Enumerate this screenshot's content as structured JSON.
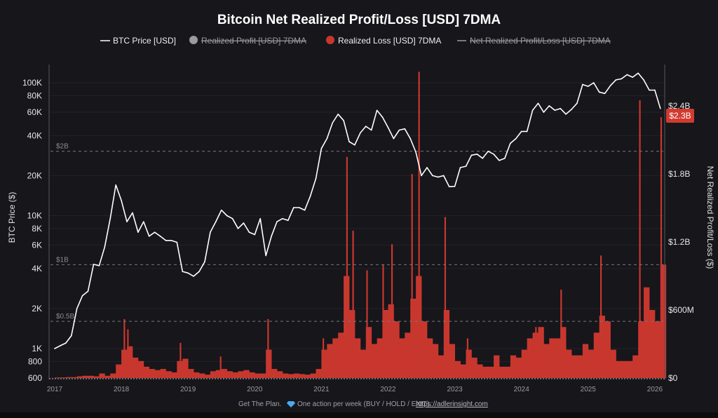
{
  "colors": {
    "background": "#16161b",
    "price_line": "#ffffff",
    "loss_fill": "#c8372e",
    "profit_legend": "#9a9aa2",
    "label_bg": "#d23a30"
  },
  "chart_data": {
    "type": "area",
    "title": "Bitcoin Net Realized Profit/Loss [USD] 7DMA",
    "legend": {
      "placement": "top",
      "items": [
        {
          "label": "BTC Price [USD]",
          "marker": "line",
          "active": true
        },
        {
          "label": "Realized Profit [USD] 7DMA",
          "marker": "circle",
          "active": false
        },
        {
          "label": "Realized Loss [USD] 7DMA",
          "marker": "circle",
          "active": true
        },
        {
          "label": "Net Realized Profit/Loss [USD] 7DMA",
          "marker": "line",
          "active": false
        }
      ]
    },
    "x_ticks": [
      "2017",
      "2018",
      "2019",
      "2020",
      "2021",
      "2022",
      "2023",
      "2024",
      "2025",
      "2026"
    ],
    "y_left": {
      "label": "BTC Price ($)",
      "scale": "log",
      "range": [
        600,
        130000
      ],
      "ticks": [
        "100K",
        "80K",
        "60K",
        "40K",
        "20K",
        "10K",
        "8K",
        "6K",
        "4K",
        "2K",
        "1K",
        "800",
        "600"
      ],
      "tick_values": [
        100000,
        80000,
        60000,
        40000,
        20000,
        10000,
        8000,
        6000,
        4000,
        2000,
        1000,
        800,
        600
      ]
    },
    "y_right": {
      "label": "Net Realized Profit/Loss ($)",
      "scale": "linear",
      "unit": "USD millions",
      "range": [
        0,
        2750
      ],
      "ticks": [
        "$0",
        "$600M",
        "$1.2B",
        "$1.8B",
        "$2.4B"
      ],
      "tick_values": [
        0,
        600,
        1200,
        1800,
        2400
      ]
    },
    "reference_lines": [
      {
        "label": "$2B",
        "value": 2000
      },
      {
        "label": "$1B",
        "value": 1000
      },
      {
        "label": "$0.5B",
        "value": 500
      }
    ],
    "current_value_label": {
      "text": "$2.3B",
      "value": 2300
    },
    "grid": true,
    "series": [
      {
        "name": "BTC Price [USD]",
        "axis": "left",
        "points": [
          [
            "2017-01",
            1000
          ],
          [
            "2017-02",
            1050
          ],
          [
            "2017-03",
            1100
          ],
          [
            "2017-04",
            1250
          ],
          [
            "2017-05",
            2000
          ],
          [
            "2017-06",
            2500
          ],
          [
            "2017-07",
            2700
          ],
          [
            "2017-08",
            4300
          ],
          [
            "2017-09",
            4200
          ],
          [
            "2017-10",
            5800
          ],
          [
            "2017-11",
            9500
          ],
          [
            "2017-12",
            17000
          ],
          [
            "2018-01",
            13000
          ],
          [
            "2018-02",
            9000
          ],
          [
            "2018-03",
            10500
          ],
          [
            "2018-04",
            7500
          ],
          [
            "2018-05",
            9000
          ],
          [
            "2018-06",
            7000
          ],
          [
            "2018-07",
            7500
          ],
          [
            "2018-08",
            7000
          ],
          [
            "2018-09",
            6500
          ],
          [
            "2018-10",
            6500
          ],
          [
            "2018-11",
            6300
          ],
          [
            "2018-12",
            3800
          ],
          [
            "2019-01",
            3700
          ],
          [
            "2019-02",
            3500
          ],
          [
            "2019-03",
            3800
          ],
          [
            "2019-04",
            4500
          ],
          [
            "2019-05",
            7500
          ],
          [
            "2019-06",
            9000
          ],
          [
            "2019-07",
            11000
          ],
          [
            "2019-08",
            10000
          ],
          [
            "2019-09",
            9500
          ],
          [
            "2019-10",
            8000
          ],
          [
            "2019-11",
            8800
          ],
          [
            "2019-12",
            7500
          ],
          [
            "2020-01",
            7200
          ],
          [
            "2020-02",
            9500
          ],
          [
            "2020-03",
            5000
          ],
          [
            "2020-04",
            7000
          ],
          [
            "2020-05",
            9000
          ],
          [
            "2020-06",
            9500
          ],
          [
            "2020-07",
            9200
          ],
          [
            "2020-08",
            11500
          ],
          [
            "2020-09",
            11500
          ],
          [
            "2020-10",
            11000
          ],
          [
            "2020-11",
            14000
          ],
          [
            "2020-12",
            19000
          ],
          [
            "2021-01",
            32000
          ],
          [
            "2021-02",
            38000
          ],
          [
            "2021-03",
            50000
          ],
          [
            "2021-04",
            58000
          ],
          [
            "2021-05",
            52000
          ],
          [
            "2021-06",
            36000
          ],
          [
            "2021-07",
            34000
          ],
          [
            "2021-08",
            42000
          ],
          [
            "2021-09",
            47000
          ],
          [
            "2021-10",
            44000
          ],
          [
            "2021-11",
            62000
          ],
          [
            "2021-12",
            55000
          ],
          [
            "2022-01",
            46000
          ],
          [
            "2022-02",
            38000
          ],
          [
            "2022-03",
            44000
          ],
          [
            "2022-04",
            45000
          ],
          [
            "2022-05",
            38000
          ],
          [
            "2022-06",
            30000
          ],
          [
            "2022-07",
            20000
          ],
          [
            "2022-08",
            23000
          ],
          [
            "2022-09",
            20000
          ],
          [
            "2022-10",
            19500
          ],
          [
            "2022-11",
            20000
          ],
          [
            "2022-12",
            16500
          ],
          [
            "2023-01",
            16600
          ],
          [
            "2023-02",
            23000
          ],
          [
            "2023-03",
            23500
          ],
          [
            "2023-04",
            28500
          ],
          [
            "2023-05",
            29000
          ],
          [
            "2023-06",
            27000
          ],
          [
            "2023-07",
            30500
          ],
          [
            "2023-08",
            29000
          ],
          [
            "2023-09",
            26000
          ],
          [
            "2023-10",
            27000
          ],
          [
            "2023-11",
            35000
          ],
          [
            "2023-12",
            38000
          ],
          [
            "2024-01",
            43000
          ],
          [
            "2024-02",
            43000
          ],
          [
            "2024-03",
            62000
          ],
          [
            "2024-04",
            70000
          ],
          [
            "2024-05",
            60000
          ],
          [
            "2024-06",
            67000
          ],
          [
            "2024-07",
            62000
          ],
          [
            "2024-08",
            64000
          ],
          [
            "2024-09",
            58000
          ],
          [
            "2024-10",
            63000
          ],
          [
            "2024-11",
            70000
          ],
          [
            "2024-12",
            97000
          ],
          [
            "2025-01",
            94000
          ],
          [
            "2025-02",
            100000
          ],
          [
            "2025-03",
            85000
          ],
          [
            "2025-04",
            83000
          ],
          [
            "2025-05",
            95000
          ],
          [
            "2025-06",
            105000
          ],
          [
            "2025-07",
            107000
          ],
          [
            "2025-08",
            115000
          ],
          [
            "2025-09",
            110000
          ],
          [
            "2025-10",
            118000
          ],
          [
            "2025-11",
            105000
          ],
          [
            "2025-12",
            88000
          ],
          [
            "2026-01",
            88000
          ],
          [
            "2026-02",
            64000
          ]
        ]
      },
      {
        "name": "Realized Loss [USD] 7DMA",
        "axis": "right",
        "unit": "USD millions",
        "points": [
          [
            "2017-01",
            5
          ],
          [
            "2017-02",
            5
          ],
          [
            "2017-03",
            8
          ],
          [
            "2017-04",
            8
          ],
          [
            "2017-05",
            15
          ],
          [
            "2017-06",
            20
          ],
          [
            "2017-07",
            20
          ],
          [
            "2017-08",
            15
          ],
          [
            "2017-09",
            40
          ],
          [
            "2017-10",
            20
          ],
          [
            "2017-11",
            40
          ],
          [
            "2017-12",
            120
          ],
          [
            "2018-01",
            250
          ],
          [
            "2018-02",
            280
          ],
          [
            "2018-03",
            180
          ],
          [
            "2018-04",
            150
          ],
          [
            "2018-05",
            100
          ],
          [
            "2018-06",
            80
          ],
          [
            "2018-07",
            70
          ],
          [
            "2018-08",
            80
          ],
          [
            "2018-09",
            60
          ],
          [
            "2018-10",
            50
          ],
          [
            "2018-11",
            150
          ],
          [
            "2018-12",
            170
          ],
          [
            "2019-01",
            80
          ],
          [
            "2019-02",
            50
          ],
          [
            "2019-03",
            40
          ],
          [
            "2019-04",
            30
          ],
          [
            "2019-05",
            60
          ],
          [
            "2019-06",
            70
          ],
          [
            "2019-07",
            80
          ],
          [
            "2019-08",
            60
          ],
          [
            "2019-09",
            50
          ],
          [
            "2019-10",
            60
          ],
          [
            "2019-11",
            70
          ],
          [
            "2019-12",
            50
          ],
          [
            "2020-01",
            40
          ],
          [
            "2020-02",
            40
          ],
          [
            "2020-03",
            250
          ],
          [
            "2020-04",
            80
          ],
          [
            "2020-05",
            60
          ],
          [
            "2020-06",
            40
          ],
          [
            "2020-07",
            35
          ],
          [
            "2020-08",
            40
          ],
          [
            "2020-09",
            35
          ],
          [
            "2020-10",
            30
          ],
          [
            "2020-11",
            40
          ],
          [
            "2020-12",
            80
          ],
          [
            "2021-01",
            250
          ],
          [
            "2021-02",
            300
          ],
          [
            "2021-03",
            350
          ],
          [
            "2021-04",
            400
          ],
          [
            "2021-05",
            900
          ],
          [
            "2021-06",
            600
          ],
          [
            "2021-07",
            350
          ],
          [
            "2021-08",
            250
          ],
          [
            "2021-09",
            450
          ],
          [
            "2021-10",
            300
          ],
          [
            "2021-11",
            350
          ],
          [
            "2021-12",
            600
          ],
          [
            "2022-01",
            650
          ],
          [
            "2022-02",
            500
          ],
          [
            "2022-03",
            350
          ],
          [
            "2022-04",
            400
          ],
          [
            "2022-05",
            700
          ],
          [
            "2022-06",
            900
          ],
          [
            "2022-07",
            500
          ],
          [
            "2022-08",
            350
          ],
          [
            "2022-09",
            300
          ],
          [
            "2022-10",
            200
          ],
          [
            "2022-11",
            600
          ],
          [
            "2022-12",
            300
          ],
          [
            "2023-01",
            150
          ],
          [
            "2023-02",
            120
          ],
          [
            "2023-03",
            250
          ],
          [
            "2023-04",
            180
          ],
          [
            "2023-05",
            120
          ],
          [
            "2023-06",
            100
          ],
          [
            "2023-07",
            100
          ],
          [
            "2023-08",
            200
          ],
          [
            "2023-09",
            100
          ],
          [
            "2023-10",
            100
          ],
          [
            "2023-11",
            200
          ],
          [
            "2023-12",
            180
          ],
          [
            "2024-01",
            250
          ],
          [
            "2024-02",
            350
          ],
          [
            "2024-03",
            400
          ],
          [
            "2024-04",
            450
          ],
          [
            "2024-05",
            300
          ],
          [
            "2024-06",
            350
          ],
          [
            "2024-07",
            350
          ],
          [
            "2024-08",
            450
          ],
          [
            "2024-09",
            250
          ],
          [
            "2024-10",
            200
          ],
          [
            "2024-11",
            200
          ],
          [
            "2024-12",
            300
          ],
          [
            "2025-01",
            250
          ],
          [
            "2025-02",
            400
          ],
          [
            "2025-03",
            550
          ],
          [
            "2025-04",
            500
          ],
          [
            "2025-05",
            250
          ],
          [
            "2025-06",
            150
          ],
          [
            "2025-07",
            150
          ],
          [
            "2025-08",
            150
          ],
          [
            "2025-09",
            200
          ],
          [
            "2025-10",
            500
          ],
          [
            "2025-11",
            800
          ],
          [
            "2025-12",
            600
          ],
          [
            "2026-01",
            500
          ],
          [
            "2026-02",
            1000
          ]
        ],
        "spikes": [
          [
            "2018-01-17",
            520
          ],
          [
            "2018-02-06",
            430
          ],
          [
            "2018-11-20",
            310
          ],
          [
            "2019-06-27",
            190
          ],
          [
            "2020-03-13",
            520
          ],
          [
            "2021-01-11",
            350
          ],
          [
            "2021-05-19",
            1950
          ],
          [
            "2021-06-22",
            1300
          ],
          [
            "2021-09-07",
            950
          ],
          [
            "2021-12-04",
            1000
          ],
          [
            "2022-01-22",
            1180
          ],
          [
            "2022-05-10",
            1800
          ],
          [
            "2022-06-18",
            2700
          ],
          [
            "2022-11-09",
            1420
          ],
          [
            "2023-03-10",
            350
          ],
          [
            "2024-03-19",
            450
          ],
          [
            "2024-08-05",
            780
          ],
          [
            "2025-03-10",
            1080
          ],
          [
            "2025-10-10",
            2450
          ],
          [
            "2026-02-05",
            2300
          ]
        ]
      }
    ]
  },
  "footer": {
    "text": "Get The Plan.",
    "icon": "diamond-icon",
    "cta": "One action per week (BUY / HOLD / EXIT).",
    "link": "https://adlerinsight.com"
  }
}
